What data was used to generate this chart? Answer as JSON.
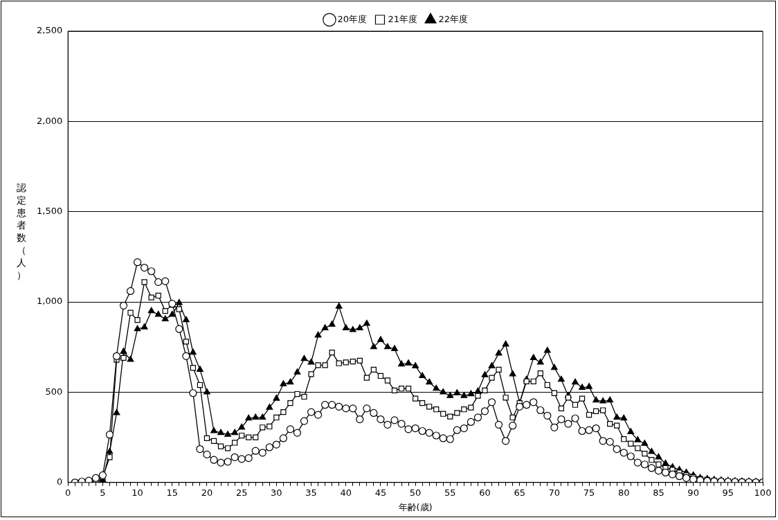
{
  "chart_data": {
    "type": "line",
    "xlabel": "年齢(歳)",
    "ylabel": "認定患者数（人）",
    "legend": "top",
    "grid": "y",
    "line_style": "solid",
    "x": [
      1,
      2,
      3,
      4,
      5,
      6,
      7,
      8,
      9,
      10,
      11,
      12,
      13,
      14,
      15,
      16,
      17,
      18,
      19,
      20,
      21,
      22,
      23,
      24,
      25,
      26,
      27,
      28,
      29,
      30,
      31,
      32,
      33,
      34,
      35,
      36,
      37,
      38,
      39,
      40,
      41,
      42,
      43,
      44,
      45,
      46,
      47,
      48,
      49,
      50,
      51,
      52,
      53,
      54,
      55,
      56,
      57,
      58,
      59,
      60,
      61,
      62,
      63,
      64,
      65,
      66,
      67,
      68,
      69,
      70,
      71,
      72,
      73,
      74,
      75,
      76,
      77,
      78,
      79,
      80,
      81,
      82,
      83,
      84,
      85,
      86,
      87,
      88,
      89,
      90,
      91,
      92,
      93,
      94,
      95,
      96,
      97,
      98,
      99,
      100
    ],
    "xlim": [
      0,
      100
    ],
    "xticks": [
      0,
      {
        "value": 1,
        "label": null
      },
      {
        "value": 2,
        "label": null
      },
      {
        "value": 3,
        "label": null
      },
      {
        "value": 4,
        "label": null
      },
      5,
      {
        "value": 6,
        "label": null
      },
      {
        "value": 7,
        "label": null
      },
      {
        "value": 8,
        "label": null
      },
      {
        "value": 9,
        "label": null
      },
      10,
      {
        "value": 11,
        "label": null
      },
      {
        "value": 12,
        "label": null
      },
      {
        "value": 13,
        "label": null
      },
      {
        "value": 14,
        "label": null
      },
      15,
      {
        "value": 16,
        "label": null
      },
      {
        "value": 17,
        "label": null
      },
      {
        "value": 18,
        "label": null
      },
      {
        "value": 19,
        "label": null
      },
      20,
      {
        "value": 21,
        "label": null
      },
      {
        "value": 22,
        "label": null
      },
      {
        "value": 23,
        "label": null
      },
      {
        "value": 24,
        "label": null
      },
      25,
      {
        "value": 26,
        "label": null
      },
      {
        "value": 27,
        "label": null
      },
      {
        "value": 28,
        "label": null
      },
      {
        "value": 29,
        "label": null
      },
      30,
      {
        "value": 31,
        "label": null
      },
      {
        "value": 32,
        "label": null
      },
      {
        "value": 33,
        "label": null
      },
      {
        "value": 34,
        "label": null
      },
      35,
      {
        "value": 36,
        "label": null
      },
      {
        "value": 37,
        "label": null
      },
      {
        "value": 38,
        "label": null
      },
      {
        "value": 39,
        "label": null
      },
      40,
      {
        "value": 41,
        "label": null
      },
      {
        "value": 42,
        "label": null
      },
      {
        "value": 43,
        "label": null
      },
      {
        "value": 44,
        "label": null
      },
      45,
      {
        "value": 46,
        "label": null
      },
      {
        "value": 47,
        "label": null
      },
      {
        "value": 48,
        "label": null
      },
      {
        "value": 49,
        "label": null
      },
      50,
      {
        "value": 51,
        "label": null
      },
      {
        "value": 52,
        "label": null
      },
      {
        "value": 53,
        "label": null
      },
      {
        "value": 54,
        "label": null
      },
      55,
      {
        "value": 56,
        "label": null
      },
      {
        "value": 57,
        "label": null
      },
      {
        "value": 58,
        "label": null
      },
      {
        "value": 59,
        "label": null
      },
      60,
      {
        "value": 61,
        "label": null
      },
      {
        "value": 62,
        "label": null
      },
      {
        "value": 63,
        "label": null
      },
      {
        "value": 64,
        "label": null
      },
      65,
      {
        "value": 66,
        "label": null
      },
      {
        "value": 67,
        "label": null
      },
      {
        "value": 68,
        "label": null
      },
      {
        "value": 69,
        "label": null
      },
      70,
      {
        "value": 71,
        "label": null
      },
      {
        "value": 72,
        "label": null
      },
      {
        "value": 73,
        "label": null
      },
      {
        "value": 74,
        "label": null
      },
      75,
      {
        "value": 76,
        "label": null
      },
      {
        "value": 77,
        "label": null
      },
      {
        "value": 78,
        "label": null
      },
      {
        "value": 79,
        "label": null
      },
      80,
      {
        "value": 81,
        "label": null
      },
      {
        "value": 82,
        "label": null
      },
      {
        "value": 83,
        "label": null
      },
      {
        "value": 84,
        "label": null
      },
      85,
      {
        "value": 86,
        "label": null
      },
      {
        "value": 87,
        "label": null
      },
      {
        "value": 88,
        "label": null
      },
      {
        "value": 89,
        "label": null
      },
      90,
      {
        "value": 91,
        "label": null
      },
      {
        "value": 92,
        "label": null
      },
      {
        "value": 93,
        "label": null
      },
      {
        "value": 94,
        "label": null
      },
      95,
      {
        "value": 96,
        "label": null
      },
      {
        "value": 97,
        "label": null
      },
      {
        "value": 98,
        "label": null
      },
      {
        "value": 99,
        "label": null
      },
      100
    ],
    "ylim": [
      0,
      2500
    ],
    "yticks": [
      0,
      500,
      {
        "value": 1000,
        "label": "1,000"
      },
      {
        "value": 1500,
        "label": "1,500"
      },
      {
        "value": 2000,
        "label": "2,000"
      },
      {
        "value": 2500,
        "label": "2,500"
      }
    ],
    "series": [
      {
        "name": "20年度",
        "color": "#000000",
        "marker": "circle",
        "values": [
          0,
          5,
          10,
          25,
          40,
          265,
          700,
          980,
          1060,
          1220,
          1190,
          1170,
          1110,
          1115,
          990,
          850,
          700,
          495,
          185,
          155,
          125,
          110,
          115,
          140,
          130,
          135,
          175,
          165,
          195,
          210,
          245,
          295,
          275,
          340,
          390,
          375,
          430,
          430,
          420,
          410,
          410,
          350,
          410,
          385,
          350,
          320,
          345,
          325,
          295,
          300,
          285,
          275,
          260,
          245,
          240,
          290,
          300,
          335,
          360,
          395,
          445,
          320,
          230,
          315,
          420,
          430,
          445,
          400,
          370,
          305,
          350,
          325,
          355,
          285,
          290,
          300,
          230,
          225,
          185,
          165,
          145,
          110,
          100,
          80,
          65,
          55,
          45,
          35,
          25,
          18,
          12,
          8,
          6,
          5,
          4,
          3,
          2,
          2,
          1,
          1
        ]
      },
      {
        "name": "21年度",
        "color": "#000000",
        "marker": "square",
        "values": [
          0,
          2,
          5,
          10,
          30,
          140,
          680,
          690,
          940,
          900,
          1110,
          1025,
          1035,
          950,
          985,
          960,
          780,
          635,
          540,
          245,
          230,
          200,
          190,
          220,
          260,
          250,
          250,
          305,
          310,
          360,
          390,
          440,
          490,
          475,
          600,
          650,
          650,
          720,
          660,
          665,
          670,
          675,
          580,
          625,
          590,
          565,
          510,
          520,
          520,
          465,
          440,
          420,
          405,
          380,
          365,
          385,
          405,
          415,
          480,
          510,
          580,
          625,
          470,
          360,
          440,
          560,
          560,
          605,
          540,
          495,
          410,
          470,
          430,
          465,
          375,
          395,
          400,
          325,
          315,
          240,
          215,
          190,
          160,
          125,
          100,
          80,
          70,
          55,
          40,
          30,
          20,
          15,
          10,
          8,
          6,
          5,
          4,
          3,
          3,
          2
        ]
      },
      {
        "name": "22年度",
        "color": "#000000",
        "marker": "triangle",
        "values": [
          null,
          2,
          5,
          8,
          15,
          170,
          385,
          725,
          680,
          850,
          860,
          950,
          930,
          905,
          930,
          995,
          900,
          720,
          625,
          500,
          285,
          275,
          265,
          275,
          305,
          355,
          360,
          360,
          415,
          465,
          545,
          555,
          610,
          685,
          665,
          815,
          855,
          875,
          975,
          855,
          845,
          855,
          880,
          750,
          790,
          750,
          740,
          655,
          660,
          645,
          590,
          555,
          520,
          500,
          480,
          495,
          480,
          490,
          505,
          595,
          645,
          715,
          765,
          600,
          440,
          570,
          690,
          665,
          730,
          635,
          570,
          480,
          555,
          525,
          530,
          455,
          450,
          455,
          360,
          355,
          280,
          235,
          215,
          170,
          140,
          105,
          85,
          70,
          55,
          40,
          25,
          20,
          15,
          12,
          10,
          8,
          6,
          5,
          4,
          3
        ]
      }
    ]
  }
}
